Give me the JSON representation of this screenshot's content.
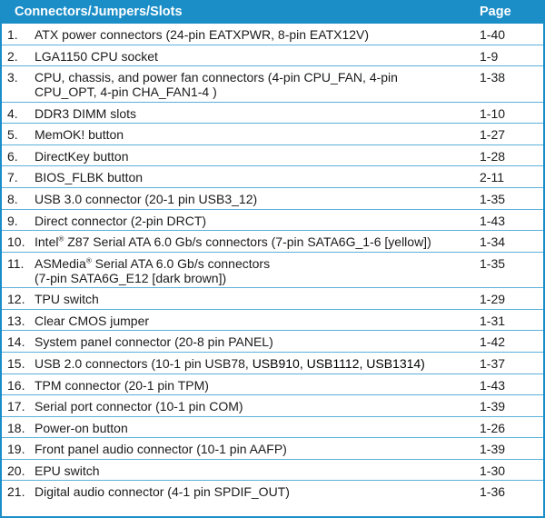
{
  "header": {
    "name": "Connectors/Jumpers/Slots",
    "page": "Page"
  },
  "rows": [
    {
      "num": "1.",
      "desc": "ATX power connectors (24-pin EATXPWR, 8-pin EATX12V)",
      "page": "1-40"
    },
    {
      "num": "2.",
      "desc": "LGA1150 CPU socket",
      "page": "1-9"
    },
    {
      "num": "3.",
      "desc_line1": "CPU, chassis, and power fan connectors (4-pin CPU_FAN, 4-pin",
      "desc_line2": "CPU_OPT, 4-pin CHA_FAN1-4 )",
      "page": "1-38"
    },
    {
      "num": "4.",
      "desc": "DDR3 DIMM slots",
      "page": "1-10"
    },
    {
      "num": "5.",
      "desc": "MemOK! button",
      "page": "1-27"
    },
    {
      "num": "6.",
      "desc": "DirectKey button",
      "page": "1-28"
    },
    {
      "num": "7.",
      "desc": "BIOS_FLBK button",
      "page": "2-11"
    },
    {
      "num": "8.",
      "desc": "USB 3.0 connector (20-1 pin USB3_12)",
      "page": "1-35"
    },
    {
      "num": "9.",
      "desc": "Direct connector (2-pin DRCT)",
      "page": "1-43"
    },
    {
      "num": "10.",
      "desc_pre": "Intel",
      "desc_sup": "®",
      "desc_post": " Z87 Serial ATA 6.0 Gb/s connectors (7-pin SATA6G_1-6 [yellow])",
      "page": "1-34"
    },
    {
      "num": "11.",
      "desc_pre": "ASMedia",
      "desc_sup": "®",
      "desc_post": " Serial ATA 6.0 Gb/s connectors",
      "desc_line2": "(7-pin SATA6G_E12 [dark brown])",
      "page": "1-35"
    },
    {
      "num": "12.",
      "desc": "TPU switch",
      "page": "1-29"
    },
    {
      "num": "13.",
      "desc": "Clear CMOS jumper",
      "page": "1-31"
    },
    {
      "num": "14.",
      "desc": "System panel connector (20-8 pin PANEL)",
      "page": "1-42"
    },
    {
      "num": "15.",
      "desc_pre": "USB 2.0 connectors (10-1 pin USB78, ",
      "desc_dark": "USB910, USB1112, USB1314)",
      "page": "1-37"
    },
    {
      "num": "16.",
      "desc": "TPM connector (20-1 pin TPM)",
      "page": "1-43"
    },
    {
      "num": "17.",
      "desc": "Serial port connector (10-1 pin COM)",
      "page": "1-39"
    },
    {
      "num": "18.",
      "desc": "Power-on button",
      "page": "1-26"
    },
    {
      "num": "19.",
      "desc": "Front panel audio connector (10-1 pin AAFP)",
      "page": "1-39"
    },
    {
      "num": "20.",
      "desc": "EPU switch",
      "page": "1-30"
    },
    {
      "num": "21.",
      "desc": "Digital audio connector (4-1 pin SPDIF_OUT)",
      "page": "1-36"
    }
  ]
}
